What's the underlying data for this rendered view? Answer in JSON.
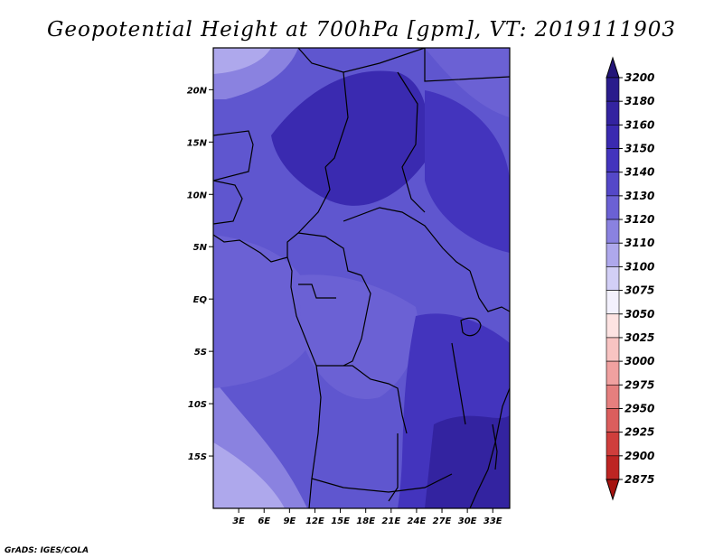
{
  "title": "Geopotential Height at 700hPa [gpm], VT: 2019111903",
  "credit": "GrADS: IGES/COLA",
  "map": {
    "lon_range": [
      0,
      35
    ],
    "lat_range": [
      -20,
      24
    ],
    "x_ticks": [
      {
        "lon": 3,
        "label": "3E"
      },
      {
        "lon": 6,
        "label": "6E"
      },
      {
        "lon": 9,
        "label": "9E"
      },
      {
        "lon": 12,
        "label": "12E"
      },
      {
        "lon": 15,
        "label": "15E"
      },
      {
        "lon": 18,
        "label": "18E"
      },
      {
        "lon": 21,
        "label": "21E"
      },
      {
        "lon": 24,
        "label": "24E"
      },
      {
        "lon": 27,
        "label": "27E"
      },
      {
        "lon": 30,
        "label": "30E"
      },
      {
        "lon": 33,
        "label": "33E"
      }
    ],
    "y_ticks": [
      {
        "lat": 20,
        "label": "20N"
      },
      {
        "lat": 15,
        "label": "15N"
      },
      {
        "lat": 10,
        "label": "10N"
      },
      {
        "lat": 5,
        "label": "5N"
      },
      {
        "lat": 0,
        "label": "EQ"
      },
      {
        "lat": -5,
        "label": "5S"
      },
      {
        "lat": -10,
        "label": "10S"
      },
      {
        "lat": -15,
        "label": "15S"
      }
    ]
  },
  "colorbar": {
    "labels": [
      "3200",
      "3180",
      "3160",
      "3150",
      "3140",
      "3130",
      "3120",
      "3110",
      "3100",
      "3075",
      "3050",
      "3025",
      "3000",
      "2975",
      "2950",
      "2925",
      "2900",
      "2875"
    ],
    "colors": [
      "#2a1c8c",
      "#3323a0",
      "#3a2ab0",
      "#4334bd",
      "#5448c8",
      "#6b61d4",
      "#8a82e0",
      "#aea8ec",
      "#d2cff6",
      "#f3f1fd",
      "#fde3e2",
      "#f8c4c2",
      "#f0a1a0",
      "#e57f7e",
      "#db5e5d",
      "#cf3e3c",
      "#bd2523",
      "#a5130f"
    ]
  }
}
